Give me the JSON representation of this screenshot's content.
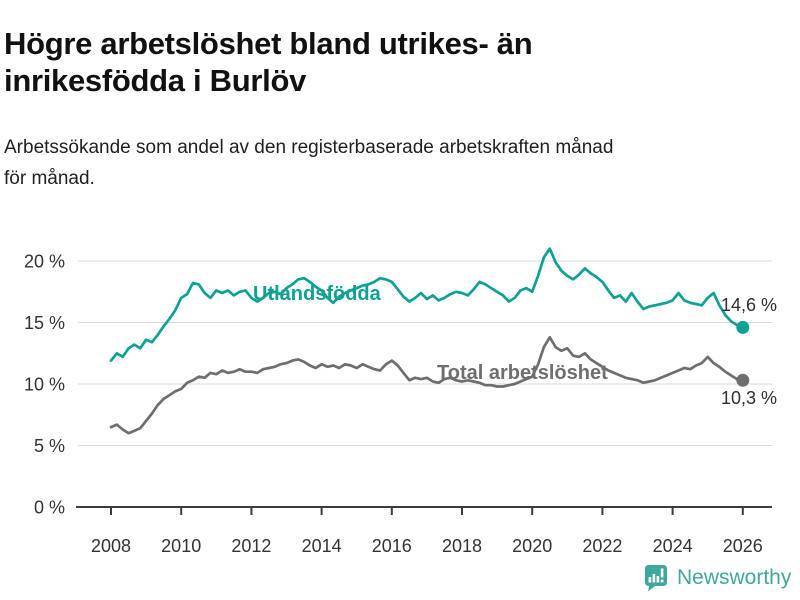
{
  "header": {
    "title_line1": "Högre arbetslöshet bland utrikes- än",
    "title_line2": "inrikesfödda i Burlöv",
    "subtitle_line1": "Arbetssökande som andel av den registerbaserade arbetskraften månad",
    "subtitle_line2": "för månad."
  },
  "footer": {
    "brand": "Newsworthy"
  },
  "colors": {
    "teal": "#0da194",
    "gray": "#6e6e6e",
    "grid": "#dadada",
    "axis": "#3c3c3c",
    "tick_text": "#333333",
    "value_text": "#2e2e2e",
    "brand": "#3ea89d"
  },
  "chart_data": {
    "type": "line",
    "title": "Högre arbetslöshet bland utrikes- än inrikesfödda i Burlöv",
    "subtitle": "Arbetssökande som andel av den registerbaserade arbetskraften månad för månad.",
    "x_start_year": 2008,
    "x_interval_months": 2,
    "x_tick_labels": [
      "2008",
      "2010",
      "2012",
      "2014",
      "2016",
      "2018",
      "2020",
      "2022",
      "2024",
      "2026"
    ],
    "y_tick_labels": [
      "0 %",
      "5 %",
      "10 %",
      "15 %",
      "20 %"
    ],
    "y_tick_values": [
      0,
      5,
      10,
      15,
      20
    ],
    "ylim": [
      0,
      21.5
    ],
    "grid": true,
    "legend_position": "inline-labels",
    "series": [
      {
        "name": "Utlandsfödda",
        "color": "#0da194",
        "end_label": "14,6 %",
        "end_value": 14.6,
        "values": [
          11.9,
          12.5,
          12.2,
          12.9,
          13.2,
          12.9,
          13.6,
          13.4,
          14.0,
          14.7,
          15.3,
          16.0,
          17.0,
          17.3,
          18.2,
          18.1,
          17.4,
          17.0,
          17.6,
          17.4,
          17.6,
          17.2,
          17.5,
          17.6,
          17.0,
          16.7,
          17.0,
          17.4,
          17.5,
          17.3,
          17.8,
          18.1,
          18.5,
          18.6,
          18.3,
          17.9,
          17.6,
          17.0,
          16.6,
          17.1,
          17.4,
          17.6,
          17.8,
          18.0,
          18.1,
          18.3,
          18.6,
          18.5,
          18.3,
          17.7,
          17.1,
          16.7,
          17.0,
          17.4,
          16.9,
          17.2,
          16.8,
          17.0,
          17.3,
          17.5,
          17.4,
          17.2,
          17.7,
          18.3,
          18.1,
          17.8,
          17.5,
          17.2,
          16.7,
          17.0,
          17.6,
          17.8,
          17.5,
          18.8,
          20.3,
          21.0,
          19.9,
          19.2,
          18.8,
          18.5,
          18.9,
          19.4,
          19.0,
          18.7,
          18.3,
          17.6,
          17.0,
          17.2,
          16.7,
          17.4,
          16.7,
          16.1,
          16.3,
          16.4,
          16.5,
          16.6,
          16.8,
          17.4,
          16.8,
          16.6,
          16.5,
          16.4,
          17.0,
          17.4,
          16.4,
          15.6,
          15.1,
          14.8,
          14.6
        ]
      },
      {
        "name": "Total arbetslöshet",
        "color": "#6e6e6e",
        "end_label": "10,3 %",
        "end_value": 10.3,
        "values": [
          6.5,
          6.7,
          6.3,
          6.0,
          6.2,
          6.4,
          7.0,
          7.6,
          8.3,
          8.8,
          9.1,
          9.4,
          9.6,
          10.1,
          10.3,
          10.6,
          10.5,
          10.9,
          10.8,
          11.1,
          10.9,
          11.0,
          11.2,
          11.0,
          11.0,
          10.9,
          11.2,
          11.3,
          11.4,
          11.6,
          11.7,
          11.9,
          12.0,
          11.8,
          11.5,
          11.3,
          11.6,
          11.4,
          11.5,
          11.3,
          11.6,
          11.5,
          11.3,
          11.6,
          11.4,
          11.2,
          11.1,
          11.6,
          11.9,
          11.5,
          10.9,
          10.3,
          10.5,
          10.4,
          10.5,
          10.2,
          10.1,
          10.4,
          10.5,
          10.3,
          10.2,
          10.3,
          10.2,
          10.1,
          9.9,
          9.9,
          9.8,
          9.8,
          9.9,
          10.0,
          10.2,
          10.4,
          10.6,
          11.6,
          13.0,
          13.8,
          13.0,
          12.7,
          12.9,
          12.3,
          12.2,
          12.5,
          12.0,
          11.7,
          11.4,
          11.1,
          10.9,
          10.7,
          10.5,
          10.4,
          10.3,
          10.1,
          10.2,
          10.3,
          10.5,
          10.7,
          10.9,
          11.1,
          11.3,
          11.2,
          11.5,
          11.7,
          12.2,
          11.7,
          11.4,
          11.0,
          10.7,
          10.4,
          10.3
        ]
      }
    ]
  }
}
